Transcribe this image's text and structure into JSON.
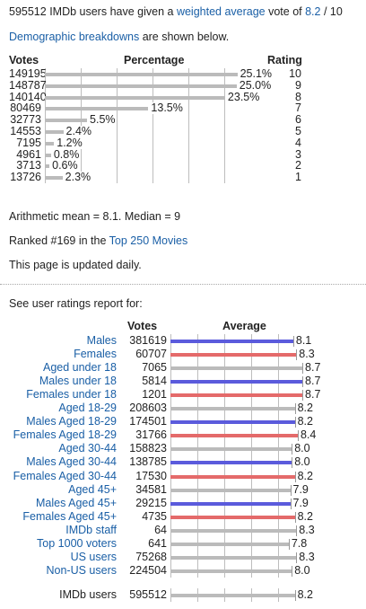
{
  "intro": {
    "users_count": "595512",
    "text_a": " IMDb users have given a ",
    "link_weighted": "weighted average",
    "text_b": " vote of ",
    "rating": "8.2",
    "text_c": " / 10"
  },
  "demo": {
    "link": "Demographic breakdowns",
    "text": " are shown below."
  },
  "histogram": {
    "col_votes": "Votes",
    "col_percentage": "Percentage",
    "col_rating": "Rating",
    "rows": [
      {
        "votes": "149195",
        "pct_label": "25.1%",
        "pct": 25.1,
        "rating": "10"
      },
      {
        "votes": "148787",
        "pct_label": "25.0%",
        "pct": 25.0,
        "rating": "9"
      },
      {
        "votes": "140140",
        "pct_label": "23.5%",
        "pct": 23.5,
        "rating": "8"
      },
      {
        "votes": "80469",
        "pct_label": "13.5%",
        "pct": 13.5,
        "rating": "7"
      },
      {
        "votes": "32773",
        "pct_label": "5.5%",
        "pct": 5.5,
        "rating": "6"
      },
      {
        "votes": "14553",
        "pct_label": "2.4%",
        "pct": 2.4,
        "rating": "5"
      },
      {
        "votes": "7195",
        "pct_label": "1.2%",
        "pct": 1.2,
        "rating": "4"
      },
      {
        "votes": "4961",
        "pct_label": "0.8%",
        "pct": 0.8,
        "rating": "3"
      },
      {
        "votes": "3713",
        "pct_label": "0.6%",
        "pct": 0.6,
        "rating": "2"
      },
      {
        "votes": "13726",
        "pct_label": "2.3%",
        "pct": 2.3,
        "rating": "1"
      }
    ]
  },
  "stats": {
    "mean_median": "Arithmetic mean = 8.1.  Median = 9",
    "ranked_text": "Ranked #169 in the ",
    "ranked_link": "Top 250 Movies",
    "updated": "This page is updated daily."
  },
  "report": {
    "intro": "See user ratings report for:",
    "col_votes": "Votes",
    "col_average": "Average",
    "rows": [
      {
        "label": "Males",
        "votes": "381619",
        "avg": 8.1,
        "avg_label": "8.1",
        "color": "blue",
        "link": true
      },
      {
        "label": "Females",
        "votes": "60707",
        "avg": 8.3,
        "avg_label": "8.3",
        "color": "red",
        "link": true
      },
      {
        "label": "Aged under 18",
        "votes": "7065",
        "avg": 8.7,
        "avg_label": "8.7",
        "color": "gray",
        "link": true
      },
      {
        "label": "Males under 18",
        "votes": "5814",
        "avg": 8.7,
        "avg_label": "8.7",
        "color": "blue",
        "link": true
      },
      {
        "label": "Females under 18",
        "votes": "1201",
        "avg": 8.7,
        "avg_label": "8.7",
        "color": "red",
        "link": true
      },
      {
        "label": "Aged 18-29",
        "votes": "208603",
        "avg": 8.2,
        "avg_label": "8.2",
        "color": "gray",
        "link": true
      },
      {
        "label": "Males Aged 18-29",
        "votes": "174501",
        "avg": 8.2,
        "avg_label": "8.2",
        "color": "blue",
        "link": true
      },
      {
        "label": "Females Aged 18-29",
        "votes": "31766",
        "avg": 8.4,
        "avg_label": "8.4",
        "color": "red",
        "link": true
      },
      {
        "label": "Aged 30-44",
        "votes": "158823",
        "avg": 8.0,
        "avg_label": "8.0",
        "color": "gray",
        "link": true
      },
      {
        "label": "Males Aged 30-44",
        "votes": "138785",
        "avg": 8.0,
        "avg_label": "8.0",
        "color": "blue",
        "link": true
      },
      {
        "label": "Females Aged 30-44",
        "votes": "17530",
        "avg": 8.2,
        "avg_label": "8.2",
        "color": "red",
        "link": true
      },
      {
        "label": "Aged 45+",
        "votes": "34581",
        "avg": 7.9,
        "avg_label": "7.9",
        "color": "gray",
        "link": true
      },
      {
        "label": "Males Aged 45+",
        "votes": "29215",
        "avg": 7.9,
        "avg_label": "7.9",
        "color": "blue",
        "link": true
      },
      {
        "label": "Females Aged 45+",
        "votes": "4735",
        "avg": 8.2,
        "avg_label": "8.2",
        "color": "red",
        "link": true
      },
      {
        "label": "IMDb staff",
        "votes": "64",
        "avg": 8.3,
        "avg_label": "8.3",
        "color": "gray",
        "link": true
      },
      {
        "label": "Top 1000 voters",
        "votes": "641",
        "avg": 7.8,
        "avg_label": "7.8",
        "color": "gray",
        "link": true
      },
      {
        "label": "US users",
        "votes": "75268",
        "avg": 8.3,
        "avg_label": "8.3",
        "color": "gray",
        "link": true
      },
      {
        "label": "Non-US users",
        "votes": "224504",
        "avg": 8.0,
        "avg_label": "8.0",
        "color": "gray",
        "link": true
      }
    ],
    "total": {
      "label": "IMDb users",
      "votes": "595512",
      "avg": 8.2,
      "avg_label": "8.2",
      "color": "gray",
      "link": false
    }
  },
  "colors": {
    "blue": "#5b5bdc",
    "red": "#e46a6a",
    "gray": "#bbbbbb",
    "link": "#1a5fa6"
  }
}
